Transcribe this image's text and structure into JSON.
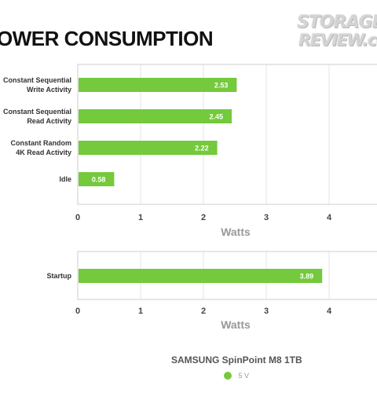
{
  "title": "OWER CONSUMPTION",
  "logo": {
    "line1": "STORAGE",
    "line2": "REVIEW.co"
  },
  "legend": {
    "title": "SAMSUNG SpinPoint M8 1TB",
    "series_name": "5 V"
  },
  "colors": {
    "bar": "#74c93c",
    "grid": "#e3e3e3",
    "frame": "#cccccc"
  },
  "chart_data": [
    {
      "type": "bar",
      "orientation": "horizontal",
      "categories": [
        [
          "Constant Sequential",
          "Write Activity"
        ],
        [
          "Constant Sequential",
          "Read Activity"
        ],
        [
          "Constant Random",
          "4K Read Activity"
        ],
        [
          "Idle"
        ]
      ],
      "series": [
        {
          "name": "5 V",
          "values": [
            2.53,
            2.45,
            2.22,
            0.58
          ]
        }
      ],
      "xlabel": "Watts",
      "ticks": [
        "0",
        "1",
        "2",
        "3",
        "4"
      ],
      "xlim": [
        0,
        4.8
      ],
      "grid": true
    },
    {
      "type": "bar",
      "orientation": "horizontal",
      "categories": [
        [
          "Startup"
        ]
      ],
      "series": [
        {
          "name": "5 V",
          "values": [
            3.89
          ]
        }
      ],
      "xlabel": "Watts",
      "ticks": [
        "0",
        "1",
        "2",
        "3",
        "4"
      ],
      "xlim": [
        0,
        4.8
      ],
      "grid": true
    }
  ]
}
